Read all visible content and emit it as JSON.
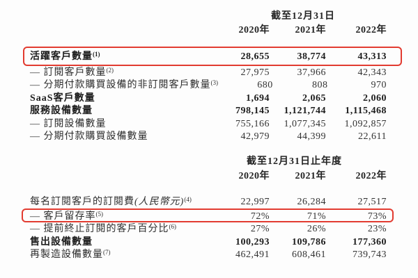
{
  "colors": {
    "highlight_box": "#e23b30",
    "text": "#2e2e2e"
  },
  "section1": {
    "period_header": "截至12月31日",
    "years": [
      "2020年",
      "2021年",
      "2022年"
    ],
    "rows": [
      {
        "label": "活躍客戶數量",
        "sup": "(1)",
        "values": [
          "28,655",
          "38,774",
          "43,313"
        ],
        "bold": true,
        "highlighted": true
      },
      {
        "label": "— 訂閱客戶數量",
        "sup": "(2)",
        "values": [
          "27,975",
          "37,966",
          "42,343"
        ]
      },
      {
        "label": "— 分期付款購買設備的非訂閱客戶數量",
        "sup": "(3)",
        "values": [
          "680",
          "808",
          "970"
        ]
      },
      {
        "label": "SaaS客戶數量",
        "values": [
          "1,694",
          "2,065",
          "2,060"
        ],
        "bold": true
      },
      {
        "label": "服務設備數量",
        "values": [
          "798,145",
          "1,121,744",
          "1,115,468"
        ],
        "bold": true
      },
      {
        "label": "— 訂閱設備數量",
        "values": [
          "755,166",
          "1,077,345",
          "1,092,857"
        ]
      },
      {
        "label": "— 分期付款購買設備數量",
        "values": [
          "42,979",
          "44,399",
          "22,611"
        ]
      }
    ]
  },
  "section2": {
    "period_header": "截至12月31日止年度",
    "years": [
      "2020年",
      "2021年",
      "2022年"
    ],
    "rows": [
      {
        "label": "每名訂閱客戶的訂閱費",
        "paren": "(人民幣元)",
        "sup": "(4)",
        "values": [
          "22,997",
          "26,284",
          "27,517"
        ]
      },
      {
        "label": "— 客戶留存率",
        "sup": "(5)",
        "values": [
          "72%",
          "71%",
          "73%"
        ],
        "highlighted": true
      },
      {
        "label": "— 提前終止訂閱的客戶百分比",
        "sup": "(6)",
        "values": [
          "27%",
          "26%",
          "23%"
        ]
      },
      {
        "label": "售出設備數量",
        "values": [
          "100,293",
          "109,786",
          "177,360"
        ],
        "bold": true
      },
      {
        "label": "再製造設備數量",
        "sup": "(7)",
        "values": [
          "462,491",
          "608,461",
          "739,743"
        ]
      }
    ]
  }
}
